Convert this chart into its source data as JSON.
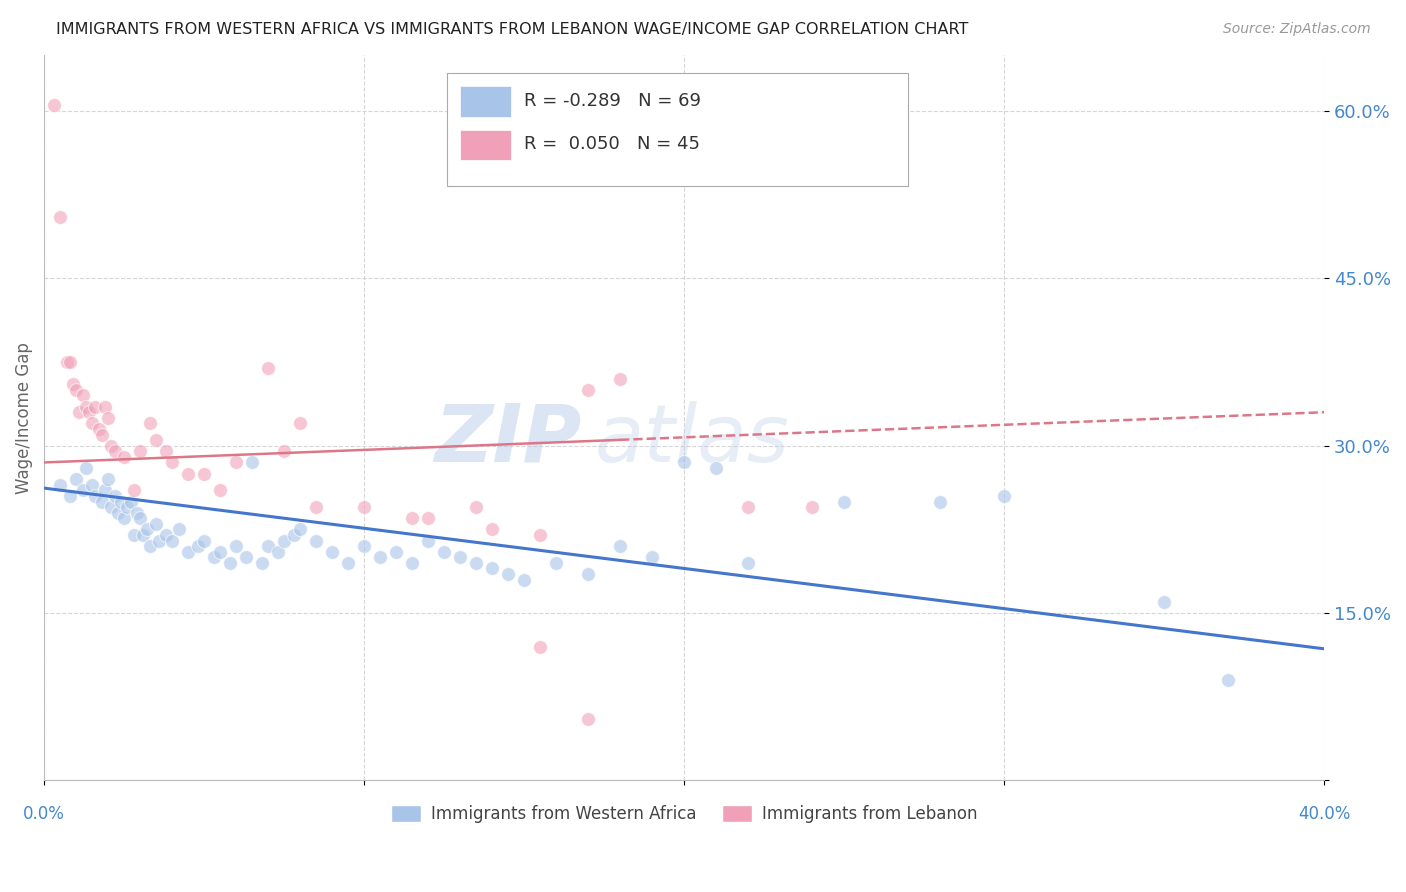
{
  "title": "IMMIGRANTS FROM WESTERN AFRICA VS IMMIGRANTS FROM LEBANON WAGE/INCOME GAP CORRELATION CHART",
  "source": "Source: ZipAtlas.com",
  "ylabel": "Wage/Income Gap",
  "yticks": [
    0.0,
    0.15,
    0.3,
    0.45,
    0.6
  ],
  "ytick_labels": [
    "",
    "15.0%",
    "30.0%",
    "45.0%",
    "60.0%"
  ],
  "xmin": 0.0,
  "xmax": 0.4,
  "ymin": 0.0,
  "ymax": 0.65,
  "blue_R": -0.289,
  "blue_N": 69,
  "pink_R": 0.05,
  "pink_N": 45,
  "blue_color": "#a8c4e8",
  "pink_color": "#f0a0b8",
  "blue_line_color": "#4477cc",
  "pink_line_color": "#dd7788",
  "watermark_text": "ZIP",
  "watermark_text2": "atlas",
  "legend_label_blue": "Immigrants from Western Africa",
  "legend_label_pink": "Immigrants from Lebanon",
  "blue_scatter_x": [
    0.005,
    0.008,
    0.01,
    0.012,
    0.013,
    0.015,
    0.016,
    0.018,
    0.019,
    0.02,
    0.021,
    0.022,
    0.023,
    0.024,
    0.025,
    0.026,
    0.027,
    0.028,
    0.029,
    0.03,
    0.031,
    0.032,
    0.033,
    0.035,
    0.036,
    0.038,
    0.04,
    0.042,
    0.045,
    0.048,
    0.05,
    0.053,
    0.055,
    0.058,
    0.06,
    0.063,
    0.065,
    0.068,
    0.07,
    0.073,
    0.075,
    0.078,
    0.08,
    0.085,
    0.09,
    0.095,
    0.1,
    0.105,
    0.11,
    0.115,
    0.12,
    0.125,
    0.13,
    0.135,
    0.14,
    0.145,
    0.15,
    0.16,
    0.17,
    0.18,
    0.19,
    0.2,
    0.21,
    0.22,
    0.25,
    0.28,
    0.3,
    0.35,
    0.37
  ],
  "blue_scatter_y": [
    0.265,
    0.255,
    0.27,
    0.26,
    0.28,
    0.265,
    0.255,
    0.25,
    0.26,
    0.27,
    0.245,
    0.255,
    0.24,
    0.25,
    0.235,
    0.245,
    0.25,
    0.22,
    0.24,
    0.235,
    0.22,
    0.225,
    0.21,
    0.23,
    0.215,
    0.22,
    0.215,
    0.225,
    0.205,
    0.21,
    0.215,
    0.2,
    0.205,
    0.195,
    0.21,
    0.2,
    0.285,
    0.195,
    0.21,
    0.205,
    0.215,
    0.22,
    0.225,
    0.215,
    0.205,
    0.195,
    0.21,
    0.2,
    0.205,
    0.195,
    0.215,
    0.205,
    0.2,
    0.195,
    0.19,
    0.185,
    0.18,
    0.195,
    0.185,
    0.21,
    0.2,
    0.285,
    0.28,
    0.195,
    0.25,
    0.25,
    0.255,
    0.16,
    0.09
  ],
  "pink_scatter_x": [
    0.003,
    0.005,
    0.007,
    0.008,
    0.009,
    0.01,
    0.011,
    0.012,
    0.013,
    0.014,
    0.015,
    0.016,
    0.017,
    0.018,
    0.019,
    0.02,
    0.021,
    0.022,
    0.025,
    0.028,
    0.03,
    0.033,
    0.035,
    0.038,
    0.04,
    0.045,
    0.05,
    0.055,
    0.06,
    0.07,
    0.075,
    0.08,
    0.085,
    0.1,
    0.115,
    0.12,
    0.135,
    0.14,
    0.155,
    0.17,
    0.18,
    0.22,
    0.24,
    0.155,
    0.17
  ],
  "pink_scatter_y": [
    0.605,
    0.505,
    0.375,
    0.375,
    0.355,
    0.35,
    0.33,
    0.345,
    0.335,
    0.33,
    0.32,
    0.335,
    0.315,
    0.31,
    0.335,
    0.325,
    0.3,
    0.295,
    0.29,
    0.26,
    0.295,
    0.32,
    0.305,
    0.295,
    0.285,
    0.275,
    0.275,
    0.26,
    0.285,
    0.37,
    0.295,
    0.32,
    0.245,
    0.245,
    0.235,
    0.235,
    0.245,
    0.225,
    0.22,
    0.35,
    0.36,
    0.245,
    0.245,
    0.12,
    0.055
  ],
  "blue_trendline_x": [
    0.0,
    0.4
  ],
  "blue_trendline_y": [
    0.262,
    0.118
  ],
  "pink_trendline_x": [
    0.0,
    0.4
  ],
  "pink_trendline_y": [
    0.285,
    0.33
  ],
  "background_color": "#ffffff",
  "grid_color": "#cccccc",
  "axis_color": "#4488cc",
  "scatter_size": 100,
  "scatter_alpha": 0.6
}
